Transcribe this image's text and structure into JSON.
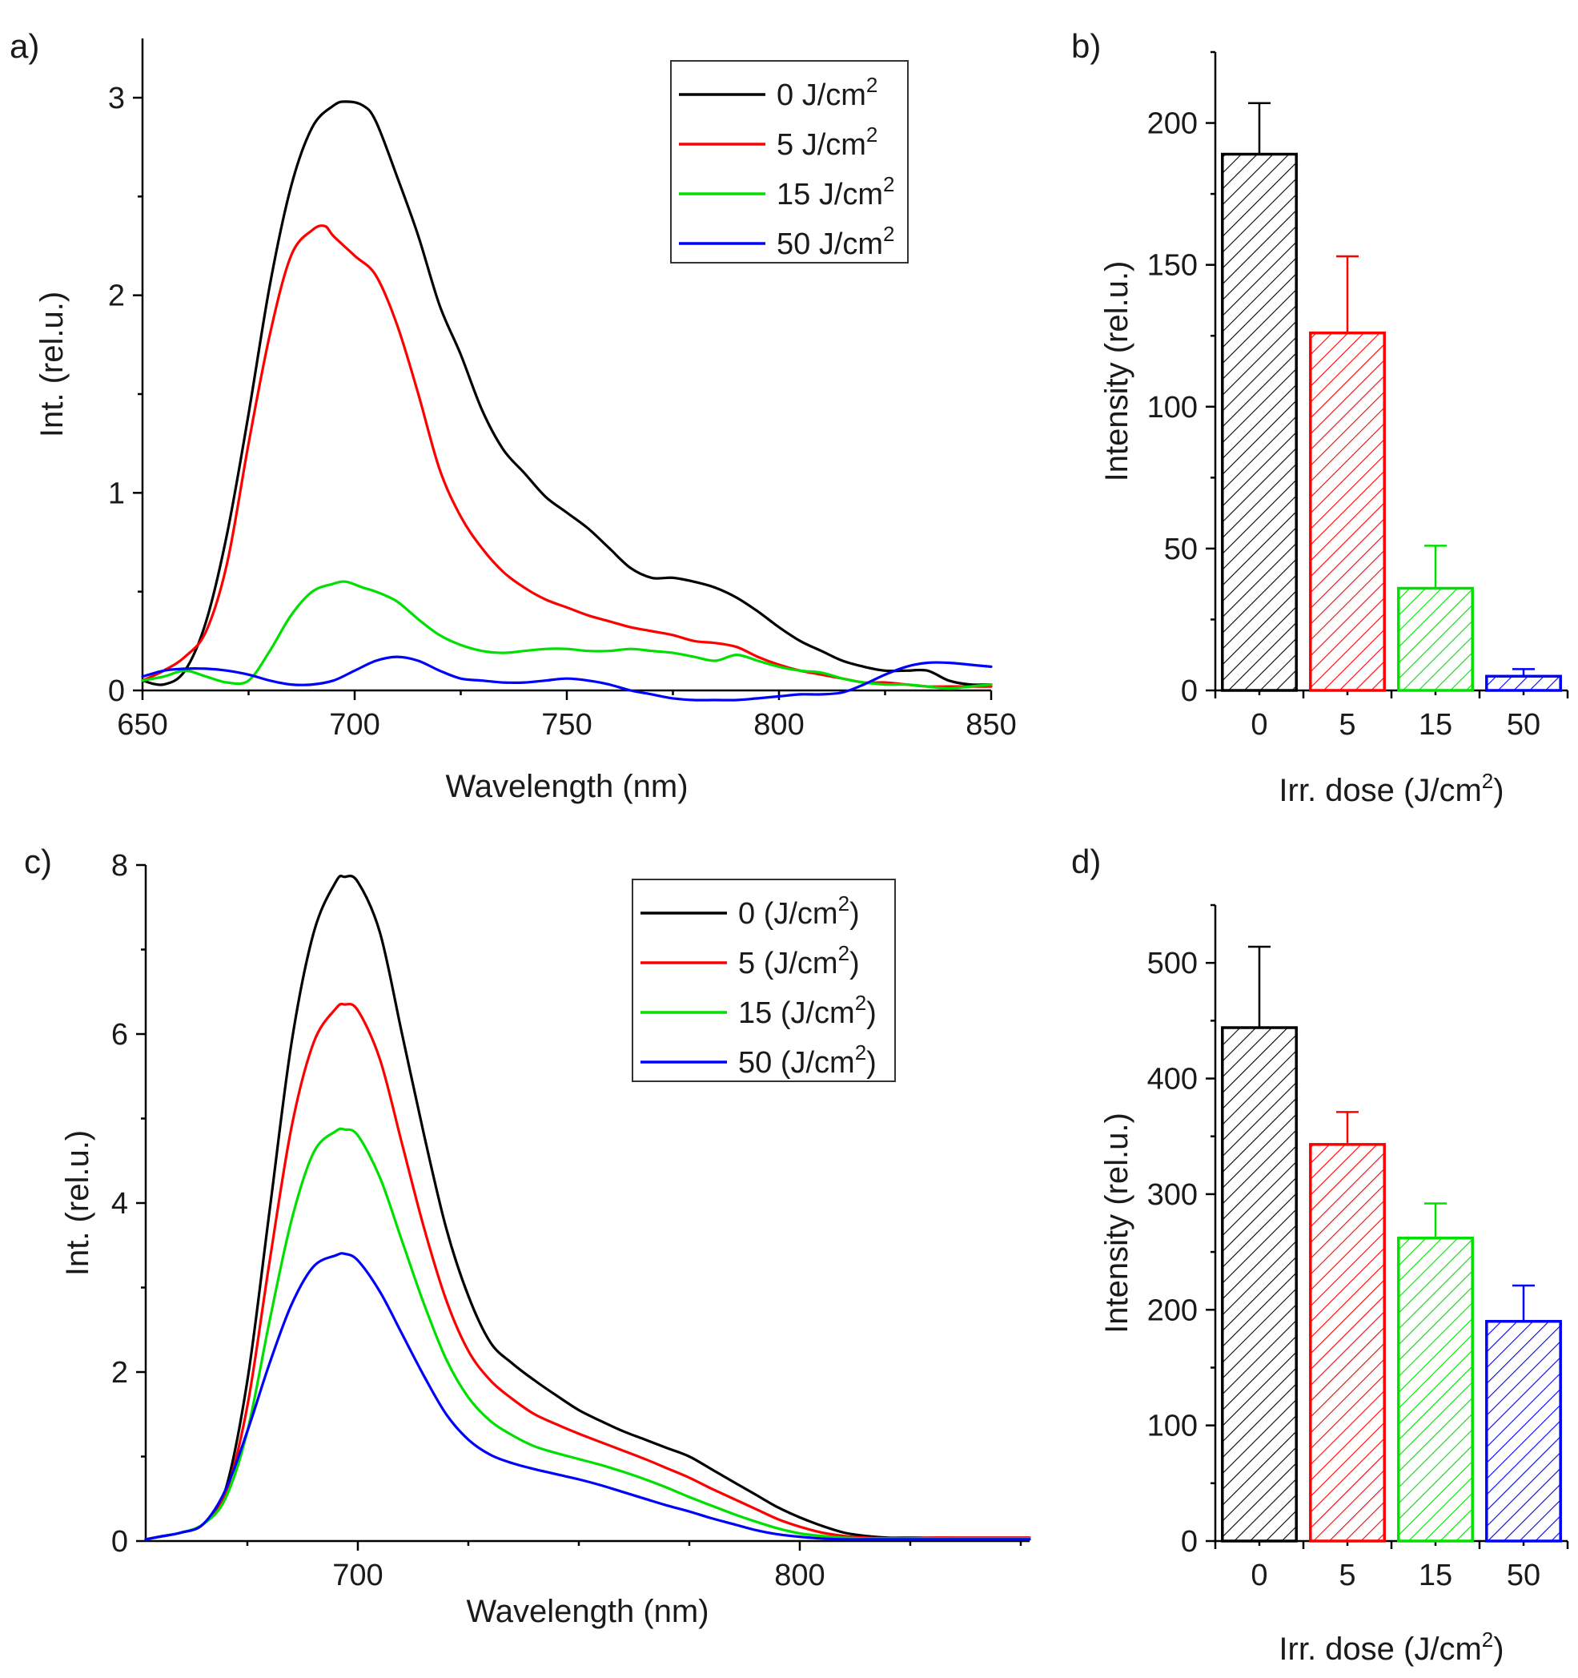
{
  "chart_data": [
    {
      "type": "line",
      "panel_label": "a)",
      "xlabel": "Wavelength (nm)",
      "ylabel": "Int. (rel.u.)",
      "xlim": [
        650,
        850
      ],
      "ylim": [
        0,
        3.3
      ],
      "xticks": [
        650,
        700,
        750,
        800,
        850
      ],
      "yticks": [
        0,
        1,
        2,
        3
      ],
      "legend_position": "top-right",
      "series": [
        {
          "name": "0 J/cm",
          "sup": "2",
          "color": "#000000",
          "x": [
            650,
            655,
            660,
            665,
            670,
            675,
            680,
            685,
            690,
            695,
            698,
            702,
            705,
            710,
            715,
            720,
            725,
            730,
            735,
            740,
            745,
            750,
            755,
            760,
            765,
            770,
            775,
            780,
            785,
            790,
            795,
            800,
            805,
            810,
            815,
            820,
            825,
            830,
            835,
            840,
            845,
            850
          ],
          "y": [
            0.05,
            0.03,
            0.1,
            0.35,
            0.8,
            1.4,
            2.05,
            2.55,
            2.85,
            2.96,
            2.98,
            2.96,
            2.88,
            2.6,
            2.3,
            1.95,
            1.7,
            1.42,
            1.22,
            1.1,
            0.98,
            0.9,
            0.82,
            0.72,
            0.62,
            0.57,
            0.57,
            0.55,
            0.52,
            0.47,
            0.4,
            0.32,
            0.25,
            0.2,
            0.15,
            0.12,
            0.1,
            0.1,
            0.1,
            0.05,
            0.03,
            0.03
          ]
        },
        {
          "name": "5 J/cm",
          "sup": "2",
          "color": "#ff0000",
          "x": [
            650,
            655,
            660,
            665,
            670,
            675,
            680,
            685,
            690,
            693,
            695,
            700,
            705,
            710,
            715,
            720,
            725,
            730,
            735,
            740,
            745,
            750,
            755,
            760,
            765,
            770,
            775,
            780,
            785,
            790,
            795,
            800,
            805,
            810,
            815,
            820,
            825,
            830,
            835,
            840,
            845,
            850
          ],
          "y": [
            0.05,
            0.1,
            0.17,
            0.3,
            0.65,
            1.25,
            1.8,
            2.2,
            2.33,
            2.35,
            2.3,
            2.2,
            2.1,
            1.85,
            1.5,
            1.12,
            0.88,
            0.72,
            0.6,
            0.52,
            0.46,
            0.42,
            0.38,
            0.35,
            0.32,
            0.3,
            0.28,
            0.25,
            0.24,
            0.22,
            0.17,
            0.13,
            0.1,
            0.08,
            0.06,
            0.04,
            0.04,
            0.03,
            0.02,
            0.02,
            0.02,
            0.02
          ]
        },
        {
          "name": "15 J/cm",
          "sup": "2",
          "color": "#00e000",
          "x": [
            650,
            655,
            660,
            665,
            670,
            675,
            680,
            685,
            690,
            695,
            698,
            702,
            705,
            710,
            715,
            720,
            725,
            730,
            735,
            740,
            745,
            750,
            755,
            760,
            765,
            770,
            775,
            780,
            785,
            790,
            795,
            800,
            805,
            810,
            815,
            820,
            825,
            830,
            835,
            840,
            845,
            850
          ],
          "y": [
            0.05,
            0.07,
            0.1,
            0.07,
            0.04,
            0.05,
            0.2,
            0.38,
            0.5,
            0.54,
            0.55,
            0.52,
            0.5,
            0.45,
            0.36,
            0.28,
            0.23,
            0.2,
            0.19,
            0.2,
            0.21,
            0.21,
            0.2,
            0.2,
            0.21,
            0.2,
            0.19,
            0.17,
            0.15,
            0.18,
            0.15,
            0.12,
            0.1,
            0.09,
            0.06,
            0.04,
            0.03,
            0.03,
            0.02,
            0.01,
            0.02,
            0.03
          ]
        },
        {
          "name": "50 J/cm",
          "sup": "2",
          "color": "#0000ff",
          "x": [
            650,
            655,
            660,
            665,
            670,
            675,
            680,
            685,
            690,
            695,
            700,
            705,
            710,
            715,
            720,
            725,
            730,
            735,
            740,
            745,
            750,
            755,
            760,
            765,
            770,
            775,
            780,
            785,
            790,
            795,
            800,
            805,
            810,
            815,
            820,
            825,
            830,
            835,
            840,
            845,
            850
          ],
          "y": [
            0.07,
            0.1,
            0.11,
            0.11,
            0.1,
            0.08,
            0.05,
            0.03,
            0.03,
            0.05,
            0.1,
            0.15,
            0.17,
            0.15,
            0.1,
            0.06,
            0.05,
            0.04,
            0.04,
            0.05,
            0.06,
            0.05,
            0.03,
            0.0,
            -0.02,
            -0.04,
            -0.05,
            -0.05,
            -0.05,
            -0.04,
            -0.03,
            -0.02,
            -0.02,
            -0.01,
            0.03,
            0.08,
            0.12,
            0.14,
            0.14,
            0.13,
            0.12
          ]
        }
      ]
    },
    {
      "type": "bar",
      "panel_label": "b)",
      "xlabel": "Irr. dose (J/cm",
      "xlabel_sup": "2",
      "xlabel_suffix": ")",
      "ylabel": "Intensity (rel.u.)",
      "ylim": [
        0,
        225
      ],
      "yticks": [
        0,
        50,
        100,
        150,
        200
      ],
      "categories": [
        "0",
        "5",
        "15",
        "50"
      ],
      "values": [
        189,
        126,
        36,
        5
      ],
      "errors": [
        18,
        27,
        15,
        2.5
      ],
      "colors": [
        "#000000",
        "#ff0000",
        "#00e000",
        "#0000ff"
      ]
    },
    {
      "type": "line",
      "panel_label": "c)",
      "xlabel": "Wavelength (nm)",
      "ylabel": "Int. (rel.u.)",
      "xlim": [
        652,
        852
      ],
      "ylim": [
        0,
        8
      ],
      "xticks": [
        700,
        800
      ],
      "xminor": [
        650,
        675,
        725,
        750,
        775,
        825,
        850
      ],
      "yticks": [
        0,
        2,
        4,
        6,
        8
      ],
      "legend_position": "top-right",
      "series": [
        {
          "name": "0 (J/cm",
          "sup": "2",
          "suffix": ")",
          "color": "#000000",
          "x": [
            652,
            655,
            660,
            665,
            670,
            675,
            680,
            685,
            690,
            695,
            697,
            700,
            705,
            710,
            715,
            720,
            725,
            730,
            735,
            740,
            745,
            750,
            755,
            760,
            765,
            770,
            775,
            780,
            785,
            790,
            795,
            800,
            805,
            810,
            815,
            820,
            825,
            830,
            835,
            840,
            845,
            852
          ],
          "y": [
            0.02,
            0.05,
            0.1,
            0.2,
            0.6,
            1.9,
            3.9,
            5.9,
            7.2,
            7.8,
            7.86,
            7.8,
            7.2,
            6.0,
            4.8,
            3.7,
            2.9,
            2.35,
            2.1,
            1.9,
            1.72,
            1.55,
            1.42,
            1.3,
            1.2,
            1.1,
            1.0,
            0.85,
            0.7,
            0.55,
            0.4,
            0.28,
            0.18,
            0.1,
            0.06,
            0.04,
            0.04,
            0.04,
            0.04,
            0.04,
            0.04,
            0.04
          ]
        },
        {
          "name": "5 (J/cm",
          "sup": "2",
          "suffix": ")",
          "color": "#ff0000",
          "x": [
            652,
            655,
            660,
            665,
            670,
            675,
            680,
            685,
            690,
            695,
            697,
            700,
            705,
            710,
            715,
            720,
            725,
            730,
            735,
            740,
            745,
            750,
            755,
            760,
            765,
            770,
            775,
            780,
            785,
            790,
            795,
            800,
            805,
            810,
            815,
            820,
            825,
            830,
            835,
            840,
            845,
            852
          ],
          "y": [
            0.02,
            0.05,
            0.1,
            0.2,
            0.55,
            1.6,
            3.3,
            4.9,
            5.9,
            6.3,
            6.35,
            6.28,
            5.7,
            4.7,
            3.7,
            2.85,
            2.25,
            1.9,
            1.68,
            1.5,
            1.38,
            1.27,
            1.17,
            1.07,
            0.97,
            0.86,
            0.75,
            0.62,
            0.5,
            0.38,
            0.26,
            0.17,
            0.1,
            0.06,
            0.04,
            0.03,
            0.03,
            0.04,
            0.04,
            0.04,
            0.04,
            0.04
          ]
        },
        {
          "name": "15 (J/cm",
          "sup": "2",
          "suffix": ")",
          "color": "#00e000",
          "x": [
            652,
            655,
            660,
            665,
            670,
            675,
            680,
            685,
            690,
            695,
            697,
            700,
            705,
            710,
            715,
            720,
            725,
            730,
            735,
            740,
            745,
            750,
            755,
            760,
            765,
            770,
            775,
            780,
            785,
            790,
            795,
            800,
            805,
            810,
            815,
            820,
            825,
            830,
            835,
            840,
            845,
            852
          ],
          "y": [
            0.02,
            0.05,
            0.1,
            0.2,
            0.5,
            1.3,
            2.6,
            3.8,
            4.6,
            4.85,
            4.87,
            4.8,
            4.3,
            3.55,
            2.8,
            2.15,
            1.7,
            1.42,
            1.25,
            1.12,
            1.04,
            0.97,
            0.9,
            0.82,
            0.73,
            0.63,
            0.52,
            0.42,
            0.32,
            0.23,
            0.15,
            0.09,
            0.06,
            0.04,
            0.03,
            0.03,
            0.03,
            0.03,
            0.03,
            0.03,
            0.03,
            0.03
          ]
        },
        {
          "name": "50 (J/cm",
          "sup": "2",
          "suffix": ")",
          "color": "#0000ff",
          "x": [
            652,
            655,
            660,
            665,
            670,
            675,
            680,
            685,
            690,
            695,
            697,
            700,
            705,
            710,
            715,
            720,
            725,
            730,
            735,
            740,
            745,
            750,
            755,
            760,
            765,
            770,
            775,
            780,
            785,
            790,
            795,
            800,
            805,
            810,
            815,
            820,
            825,
            830,
            835,
            840,
            845,
            852
          ],
          "y": [
            0.02,
            0.05,
            0.1,
            0.2,
            0.6,
            1.3,
            2.1,
            2.8,
            3.25,
            3.38,
            3.4,
            3.32,
            2.95,
            2.45,
            1.95,
            1.5,
            1.2,
            1.02,
            0.92,
            0.85,
            0.79,
            0.73,
            0.66,
            0.58,
            0.5,
            0.42,
            0.35,
            0.27,
            0.2,
            0.13,
            0.08,
            0.05,
            0.03,
            0.02,
            0.02,
            0.02,
            0.02,
            0.02,
            0.02,
            0.02,
            0.02,
            0.02
          ]
        }
      ]
    },
    {
      "type": "bar",
      "panel_label": "d)",
      "xlabel": "Irr. dose (J/cm",
      "xlabel_sup": "2",
      "xlabel_suffix": ")",
      "ylabel": "Intensity (rel.u.)",
      "ylim": [
        0,
        550
      ],
      "yticks": [
        0,
        100,
        200,
        300,
        400,
        500
      ],
      "categories": [
        "0",
        "5",
        "15",
        "50"
      ],
      "values": [
        444,
        343,
        262,
        190
      ],
      "errors": [
        70,
        28,
        30,
        31
      ],
      "colors": [
        "#000000",
        "#ff0000",
        "#00e000",
        "#0000ff"
      ]
    }
  ]
}
